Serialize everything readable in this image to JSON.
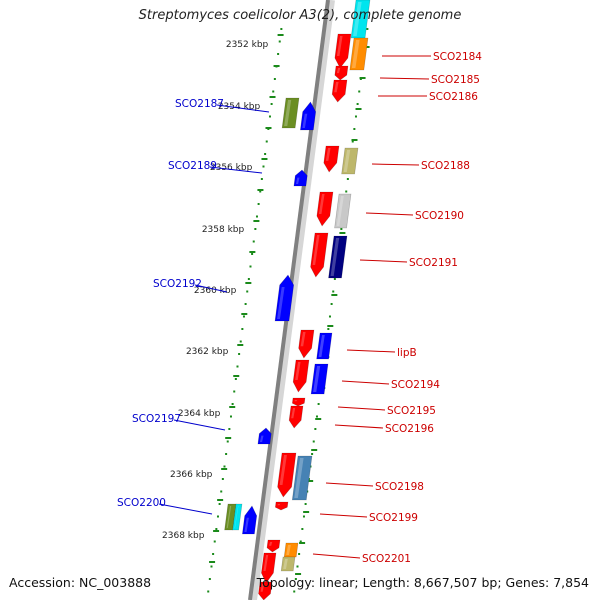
{
  "title": "Streptomyces coelicolor A3(2), complete genome",
  "accession": "Accession: NC_003888",
  "summary": "Topology: linear; Length: 8,667,507 bp; Genes: 7,854",
  "colors": {
    "forward": "#ff0000",
    "reverse": "#0000ff",
    "forward_label": "#cc0000",
    "reverse_label": "#0000cc",
    "backbone": "#808080",
    "tick": "#1a8a1a"
  },
  "scale_labels": [
    "2352 kbp",
    "2354 kbp",
    "2356 kbp",
    "2358 kbp",
    "2360 kbp",
    "2362 kbp",
    "2364 kbp",
    "2366 kbp",
    "2368 kbp"
  ],
  "right_labels": [
    "SCO2184",
    "SCO2185",
    "SCO2186",
    "SCO2188",
    "SCO2190",
    "SCO2191",
    "lipB",
    "SCO2194",
    "SCO2195",
    "SCO2196",
    "SCO2198",
    "SCO2199",
    "SCO2201"
  ],
  "left_labels": [
    "SCO2187",
    "SCO2189",
    "SCO2192",
    "SCO2197",
    "SCO2200"
  ]
}
